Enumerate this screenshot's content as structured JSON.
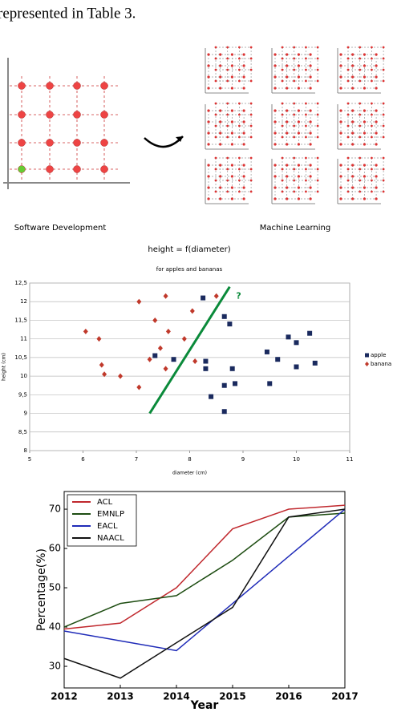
{
  "paragraph": "represented in Table 3.",
  "figure": {
    "labels": [
      "Software Development",
      "Machine Learning"
    ]
  },
  "chart_data": [
    {
      "type": "scatter",
      "title": "height = f(diameter)",
      "subtitle": "for apples and bananas",
      "x_label": "diameter (cm)",
      "y_label": "height (cm)",
      "xlim": [
        5,
        11
      ],
      "xticks": [
        5,
        6,
        7,
        8,
        9,
        10,
        11
      ],
      "ylim": [
        8,
        12.5
      ],
      "yticks": [
        8,
        {
          "value": 8.5,
          "label": "8,5"
        },
        9,
        {
          "value": 9.5,
          "label": "9,5"
        },
        10,
        {
          "value": 10.5,
          "label": "10,5"
        },
        11,
        {
          "value": 11.5,
          "label": "11,5"
        },
        12,
        {
          "value": 12.5,
          "label": "12,5"
        }
      ],
      "grid": true,
      "legend": "right",
      "series": [
        {
          "name": "apple",
          "color": "#1a2a5e",
          "marker": "square",
          "x": [
            8.25,
            8.65,
            8.75,
            7.35,
            7.7,
            8.3,
            8.3,
            8.4,
            8.65,
            8.8,
            8.85,
            8.65,
            9.45,
            9.5,
            9.65,
            9.85,
            10.0,
            10.0,
            10.25,
            10.35
          ],
          "values": [
            12.1,
            11.6,
            11.4,
            10.55,
            10.45,
            10.4,
            10.2,
            9.45,
            9.75,
            10.2,
            9.8,
            9.05,
            10.65,
            9.8,
            10.45,
            11.05,
            10.9,
            10.25,
            11.15,
            10.35
          ]
        },
        {
          "name": "banana",
          "color": "#c0392b",
          "marker": "diamond",
          "x": [
            6.05,
            6.3,
            6.35,
            6.4,
            6.7,
            7.05,
            7.05,
            7.25,
            7.35,
            7.45,
            7.55,
            7.6,
            7.55,
            7.9,
            8.05,
            8.1,
            8.5
          ],
          "values": [
            11.2,
            11.0,
            10.3,
            10.05,
            10.0,
            12.0,
            9.7,
            10.45,
            11.5,
            10.75,
            12.15,
            11.2,
            10.2,
            11.0,
            11.75,
            10.4,
            12.15
          ]
        }
      ],
      "separator": {
        "x": [
          7.25,
          8.75
        ],
        "y": [
          9,
          12.4
        ],
        "color": "#0a8a3a",
        "label": "?"
      }
    },
    {
      "type": "line",
      "x_label": "Year",
      "y_label": "Percentage(%)",
      "x": [
        2012,
        2013,
        2014,
        2015,
        2016,
        2017
      ],
      "xlim": [
        2012,
        2017
      ],
      "xticks": [
        2012,
        2013,
        2014,
        2015,
        2016,
        2017
      ],
      "ylim": [
        24.5,
        74.5
      ],
      "yticks": [
        30,
        40,
        50,
        60,
        70
      ],
      "legend": "upper left",
      "series": [
        {
          "name": "ACL",
          "color": "#c0282d",
          "values": [
            39.5,
            41,
            50,
            65,
            70,
            71
          ]
        },
        {
          "name": "EMNLP",
          "color": "#1e4d12",
          "values": [
            40,
            46,
            48,
            57,
            68,
            69
          ]
        },
        {
          "name": "EACL",
          "color": "#1f2bb8",
          "values": [
            39,
            36.5,
            34,
            46,
            58,
            70
          ]
        },
        {
          "name": "NAACL",
          "color": "#111111",
          "values": [
            32,
            27,
            36,
            45,
            68,
            70
          ]
        }
      ]
    }
  ]
}
